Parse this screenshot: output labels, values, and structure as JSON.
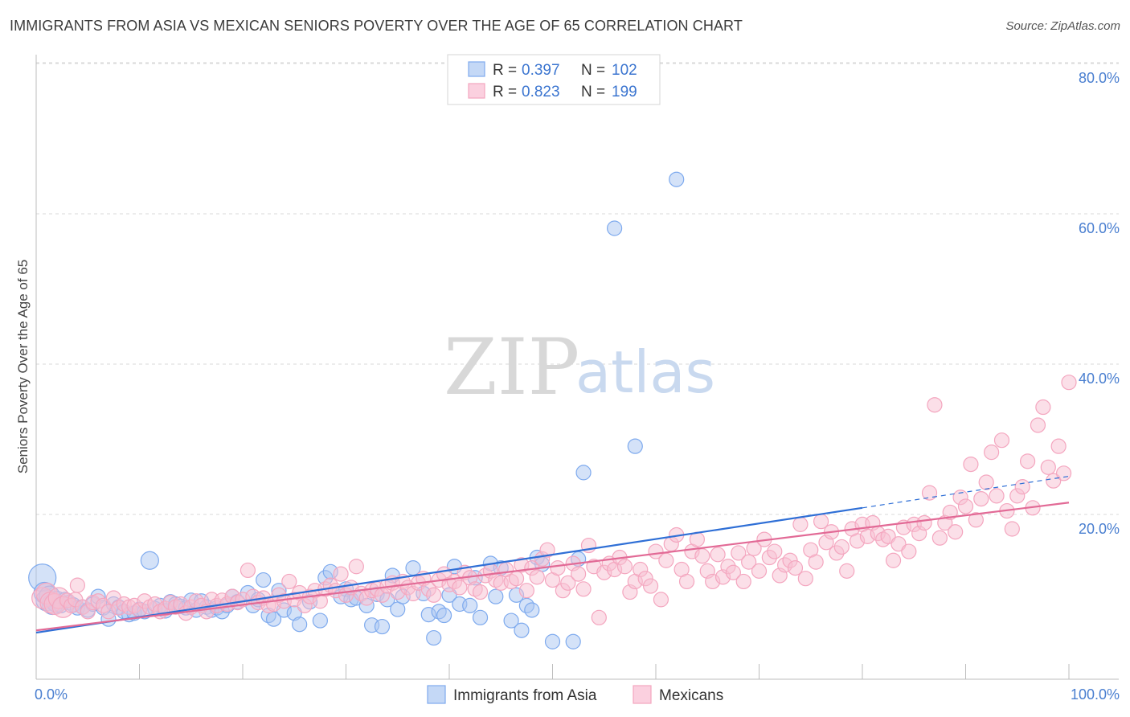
{
  "header": {
    "title": "IMMIGRANTS FROM ASIA VS MEXICAN SENIORS POVERTY OVER THE AGE OF 65 CORRELATION CHART",
    "source": "Source: ZipAtlas.com"
  },
  "watermark": {
    "zip": "ZIP",
    "atlas": "atlas"
  },
  "legend": {
    "r_label": "R =",
    "n_label": "N =",
    "rows": [
      {
        "r": "0.397",
        "n": "102",
        "color": "#7eaaee"
      },
      {
        "r": "0.823",
        "n": "199",
        "color": "#f4a6bf"
      }
    ]
  },
  "bottom_legend": [
    {
      "label": "Immigrants from Asia",
      "color": "#7eaaee"
    },
    {
      "label": "Mexicans",
      "color": "#f4a6bf"
    }
  ],
  "colors": {
    "blue_line": "#2f6fd6",
    "pink_line": "#e26a96",
    "blue_fill": "#a9c6f2",
    "pink_fill": "#f7bfd2",
    "grid": "#d9d9d9",
    "tick_text": "#4a7fd0"
  },
  "chart_data": {
    "type": "scatter",
    "xlabel": "",
    "ylabel": "Seniors Poverty Over the Age of 65",
    "xlim": [
      0,
      100
    ],
    "ylim": [
      0,
      80
    ],
    "x_tick_labels": [
      "0.0%",
      "100.0%"
    ],
    "y_ticks": [
      20,
      40,
      60,
      80
    ],
    "y_tick_labels": [
      "20.0%",
      "40.0%",
      "60.0%",
      "80.0%"
    ],
    "grid": true,
    "series": [
      {
        "name": "Immigrants from Asia",
        "trend": {
          "x": [
            0,
            80
          ],
          "y": [
            6.2,
            22.8
          ],
          "dashed_to": [
            100,
            27.0
          ]
        },
        "points": [
          [
            0.6,
            13.5
          ],
          [
            0.8,
            11.5
          ],
          [
            1.0,
            10.5
          ],
          [
            1.3,
            11.0
          ],
          [
            1.6,
            10.0
          ],
          [
            2.0,
            10.3
          ],
          [
            2.4,
            9.8
          ],
          [
            2.8,
            10.6
          ],
          [
            3.2,
            10.2
          ],
          [
            3.6,
            9.9
          ],
          [
            4.0,
            9.5
          ],
          [
            4.5,
            9.6
          ],
          [
            5.0,
            9.2
          ],
          [
            5.5,
            10.0
          ],
          [
            6.0,
            11.0
          ],
          [
            6.5,
            9.5
          ],
          [
            7.0,
            8.0
          ],
          [
            7.5,
            10.0
          ],
          [
            8.0,
            9.6
          ],
          [
            8.5,
            9.0
          ],
          [
            9.0,
            8.6
          ],
          [
            9.5,
            8.8
          ],
          [
            10.0,
            9.3
          ],
          [
            10.5,
            9.0
          ],
          [
            11.0,
            15.8
          ],
          [
            11.5,
            9.4
          ],
          [
            12.0,
            9.8
          ],
          [
            12.5,
            9.1
          ],
          [
            13.0,
            10.3
          ],
          [
            13.5,
            10.0
          ],
          [
            14.0,
            9.7
          ],
          [
            14.5,
            9.5
          ],
          [
            15.0,
            10.5
          ],
          [
            15.5,
            9.2
          ],
          [
            16.0,
            10.4
          ],
          [
            16.5,
            9.6
          ],
          [
            17.0,
            9.2
          ],
          [
            17.5,
            9.5
          ],
          [
            18.0,
            9.0
          ],
          [
            18.5,
            9.8
          ],
          [
            19.0,
            11.0
          ],
          [
            19.5,
            10.3
          ],
          [
            20.5,
            11.5
          ],
          [
            21.0,
            9.8
          ],
          [
            21.5,
            10.6
          ],
          [
            22.0,
            13.2
          ],
          [
            22.5,
            8.5
          ],
          [
            23.0,
            8.0
          ],
          [
            23.5,
            11.8
          ],
          [
            24.0,
            9.2
          ],
          [
            25.0,
            8.8
          ],
          [
            25.5,
            7.3
          ],
          [
            26.5,
            10.3
          ],
          [
            27.5,
            7.8
          ],
          [
            28.0,
            13.5
          ],
          [
            28.5,
            14.3
          ],
          [
            29.5,
            11.0
          ],
          [
            30.0,
            12.0
          ],
          [
            30.5,
            10.6
          ],
          [
            31.0,
            10.8
          ],
          [
            32.0,
            9.8
          ],
          [
            32.5,
            7.2
          ],
          [
            33.0,
            11.3
          ],
          [
            33.5,
            7.0
          ],
          [
            34.0,
            10.6
          ],
          [
            34.5,
            13.8
          ],
          [
            35.0,
            9.3
          ],
          [
            35.5,
            11.0
          ],
          [
            36.5,
            14.8
          ],
          [
            37.5,
            11.4
          ],
          [
            38.0,
            8.6
          ],
          [
            38.5,
            5.5
          ],
          [
            39.0,
            9.0
          ],
          [
            39.5,
            8.5
          ],
          [
            40.0,
            11.2
          ],
          [
            40.5,
            15.0
          ],
          [
            41.0,
            10.0
          ],
          [
            42.0,
            9.8
          ],
          [
            42.5,
            13.5
          ],
          [
            43.0,
            8.2
          ],
          [
            44.0,
            15.4
          ],
          [
            44.5,
            11.0
          ],
          [
            45.0,
            14.8
          ],
          [
            46.0,
            7.8
          ],
          [
            46.5,
            11.2
          ],
          [
            47.0,
            6.5
          ],
          [
            47.5,
            9.8
          ],
          [
            48.0,
            9.2
          ],
          [
            48.5,
            16.2
          ],
          [
            49.0,
            15.3
          ],
          [
            50.0,
            5.0
          ],
          [
            52.0,
            5.0
          ],
          [
            52.5,
            16.0
          ],
          [
            53.0,
            27.5
          ],
          [
            56.0,
            60.0
          ],
          [
            58.0,
            31.0
          ],
          [
            62.0,
            66.5
          ]
        ]
      },
      {
        "name": "Mexicans",
        "trend": {
          "x": [
            0,
            100
          ],
          "y": [
            6.5,
            23.5
          ]
        },
        "points": [
          [
            0.6,
            10.8
          ],
          [
            1.0,
            11.4
          ],
          [
            1.4,
            10.2
          ],
          [
            1.8,
            10.0
          ],
          [
            2.2,
            10.8
          ],
          [
            2.6,
            9.6
          ],
          [
            3.0,
            10.5
          ],
          [
            3.4,
            9.8
          ],
          [
            3.8,
            10.6
          ],
          [
            4.0,
            12.5
          ],
          [
            4.5,
            9.6
          ],
          [
            5.0,
            9.0
          ],
          [
            5.5,
            10.2
          ],
          [
            6.0,
            10.4
          ],
          [
            6.5,
            9.8
          ],
          [
            7.0,
            9.0
          ],
          [
            7.5,
            10.8
          ],
          [
            8.0,
            9.5
          ],
          [
            8.5,
            10.0
          ],
          [
            9.0,
            9.6
          ],
          [
            9.5,
            9.8
          ],
          [
            10.0,
            9.2
          ],
          [
            10.5,
            10.4
          ],
          [
            11.0,
            9.6
          ],
          [
            11.5,
            10.0
          ],
          [
            12.0,
            9.0
          ],
          [
            12.5,
            9.4
          ],
          [
            13.0,
            10.2
          ],
          [
            13.5,
            9.6
          ],
          [
            14.0,
            10.0
          ],
          [
            14.5,
            8.8
          ],
          [
            15.0,
            9.6
          ],
          [
            15.5,
            10.4
          ],
          [
            16.0,
            9.8
          ],
          [
            16.5,
            9.0
          ],
          [
            17.0,
            10.6
          ],
          [
            17.5,
            9.8
          ],
          [
            18.0,
            10.5
          ],
          [
            18.5,
            10.0
          ],
          [
            19.0,
            11.0
          ],
          [
            19.5,
            10.2
          ],
          [
            20.0,
            10.6
          ],
          [
            20.5,
            14.5
          ],
          [
            21.0,
            11.0
          ],
          [
            21.5,
            10.2
          ],
          [
            22.0,
            10.8
          ],
          [
            22.5,
            9.8
          ],
          [
            23.0,
            10.0
          ],
          [
            23.5,
            11.2
          ],
          [
            24.0,
            10.4
          ],
          [
            24.5,
            13.0
          ],
          [
            25.0,
            10.6
          ],
          [
            25.5,
            11.5
          ],
          [
            26.0,
            9.8
          ],
          [
            26.5,
            11.0
          ],
          [
            27.0,
            11.8
          ],
          [
            27.5,
            10.4
          ],
          [
            28.0,
            12.0
          ],
          [
            28.5,
            12.5
          ],
          [
            29.0,
            11.8
          ],
          [
            29.5,
            14.0
          ],
          [
            30.0,
            11.2
          ],
          [
            30.5,
            12.2
          ],
          [
            31.0,
            15.0
          ],
          [
            31.5,
            11.4
          ],
          [
            32.0,
            10.8
          ],
          [
            32.5,
            11.8
          ],
          [
            33.0,
            12.0
          ],
          [
            33.5,
            11.2
          ],
          [
            34.0,
            12.4
          ],
          [
            34.5,
            12.8
          ],
          [
            35.0,
            11.6
          ],
          [
            35.5,
            13.0
          ],
          [
            36.0,
            12.2
          ],
          [
            36.5,
            11.4
          ],
          [
            37.0,
            12.8
          ],
          [
            37.5,
            13.4
          ],
          [
            38.0,
            12.0
          ],
          [
            38.5,
            11.2
          ],
          [
            39.0,
            13.2
          ],
          [
            39.5,
            14.0
          ],
          [
            40.0,
            12.6
          ],
          [
            40.5,
            13.0
          ],
          [
            41.0,
            12.2
          ],
          [
            41.5,
            14.2
          ],
          [
            42.0,
            13.5
          ],
          [
            42.5,
            12.0
          ],
          [
            43.0,
            11.6
          ],
          [
            43.5,
            13.8
          ],
          [
            44.0,
            14.4
          ],
          [
            44.5,
            13.2
          ],
          [
            45.0,
            12.8
          ],
          [
            45.5,
            14.6
          ],
          [
            46.0,
            13.0
          ],
          [
            46.5,
            13.4
          ],
          [
            47.0,
            15.2
          ],
          [
            47.5,
            11.8
          ],
          [
            48.0,
            14.8
          ],
          [
            48.5,
            13.6
          ],
          [
            49.0,
            16.0
          ],
          [
            49.5,
            17.2
          ],
          [
            50.0,
            13.2
          ],
          [
            50.5,
            14.8
          ],
          [
            51.0,
            11.8
          ],
          [
            51.5,
            12.8
          ],
          [
            52.0,
            15.4
          ],
          [
            52.5,
            14.0
          ],
          [
            53.0,
            12.0
          ],
          [
            53.5,
            17.8
          ],
          [
            54.0,
            15.0
          ],
          [
            54.5,
            8.2
          ],
          [
            55.0,
            14.2
          ],
          [
            55.5,
            15.4
          ],
          [
            56.0,
            14.6
          ],
          [
            56.5,
            16.2
          ],
          [
            57.0,
            15.0
          ],
          [
            57.5,
            11.6
          ],
          [
            58.0,
            13.0
          ],
          [
            58.5,
            14.6
          ],
          [
            59.0,
            13.4
          ],
          [
            59.5,
            12.4
          ],
          [
            60.0,
            17.0
          ],
          [
            60.5,
            10.6
          ],
          [
            61.0,
            15.8
          ],
          [
            61.5,
            18.0
          ],
          [
            62.0,
            19.2
          ],
          [
            62.5,
            14.6
          ],
          [
            63.0,
            13.0
          ],
          [
            63.5,
            17.0
          ],
          [
            64.0,
            18.6
          ],
          [
            64.5,
            16.4
          ],
          [
            65.0,
            14.4
          ],
          [
            65.5,
            13.0
          ],
          [
            66.0,
            16.6
          ],
          [
            66.5,
            13.6
          ],
          [
            67.0,
            15.0
          ],
          [
            67.5,
            14.2
          ],
          [
            68.0,
            16.8
          ],
          [
            68.5,
            13.0
          ],
          [
            69.0,
            15.6
          ],
          [
            69.5,
            17.4
          ],
          [
            70.0,
            14.4
          ],
          [
            70.5,
            18.6
          ],
          [
            71.0,
            16.2
          ],
          [
            71.5,
            17.0
          ],
          [
            72.0,
            13.8
          ],
          [
            72.5,
            15.2
          ],
          [
            73.0,
            15.8
          ],
          [
            73.5,
            14.8
          ],
          [
            74.0,
            20.6
          ],
          [
            74.5,
            13.4
          ],
          [
            75.0,
            17.2
          ],
          [
            75.5,
            15.6
          ],
          [
            76.0,
            21.0
          ],
          [
            76.5,
            18.2
          ],
          [
            77.0,
            19.6
          ],
          [
            77.5,
            16.8
          ],
          [
            78.0,
            17.6
          ],
          [
            78.5,
            14.4
          ],
          [
            79.0,
            20.0
          ],
          [
            79.5,
            18.4
          ],
          [
            80.0,
            20.6
          ],
          [
            80.5,
            19.0
          ],
          [
            81.0,
            20.8
          ],
          [
            81.5,
            19.4
          ],
          [
            82.0,
            18.6
          ],
          [
            82.5,
            19.0
          ],
          [
            83.0,
            15.8
          ],
          [
            83.5,
            18.0
          ],
          [
            84.0,
            20.2
          ],
          [
            84.5,
            17.0
          ],
          [
            85.0,
            20.6
          ],
          [
            85.5,
            19.4
          ],
          [
            86.0,
            20.8
          ],
          [
            86.5,
            24.8
          ],
          [
            87.0,
            36.5
          ],
          [
            87.5,
            18.8
          ],
          [
            88.0,
            20.8
          ],
          [
            88.5,
            22.2
          ],
          [
            89.0,
            19.6
          ],
          [
            89.5,
            24.2
          ],
          [
            90.0,
            23.0
          ],
          [
            90.5,
            28.6
          ],
          [
            91.0,
            21.2
          ],
          [
            91.5,
            24.0
          ],
          [
            92.0,
            26.2
          ],
          [
            92.5,
            30.2
          ],
          [
            93.0,
            24.4
          ],
          [
            93.5,
            31.8
          ],
          [
            94.0,
            22.4
          ],
          [
            94.5,
            20.0
          ],
          [
            95.0,
            24.4
          ],
          [
            95.5,
            25.6
          ],
          [
            96.0,
            29.0
          ],
          [
            96.5,
            22.8
          ],
          [
            97.0,
            33.8
          ],
          [
            97.5,
            36.2
          ],
          [
            98.0,
            28.2
          ],
          [
            98.5,
            26.4
          ],
          [
            99.0,
            31.0
          ],
          [
            99.5,
            27.4
          ],
          [
            100.0,
            39.5
          ]
        ]
      }
    ]
  }
}
